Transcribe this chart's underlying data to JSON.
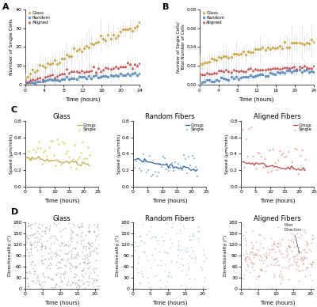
{
  "panel_A": {
    "xlabel": "Time (hours)",
    "ylabel": "Number of Single Cells",
    "ylim": [
      0,
      40
    ],
    "yticks": [
      0,
      10,
      20,
      30,
      40
    ],
    "xlim": [
      0,
      24
    ],
    "xticks": [
      0,
      4,
      8,
      12,
      16,
      20,
      24
    ],
    "legend": [
      "Glass",
      "Random",
      "Aligned"
    ],
    "colors": [
      "#C8A84B",
      "#6090B8",
      "#C04848"
    ],
    "markers": [
      "o",
      "s",
      "^"
    ]
  },
  "panel_B": {
    "xlabel": "Time (hours)",
    "ylabel": "Number of Single Cells/\nTotal Number of Cells",
    "ylim": [
      0.0,
      0.08
    ],
    "yticks": [
      0.0,
      0.02,
      0.04,
      0.06,
      0.08
    ],
    "xlim": [
      0,
      24
    ],
    "xticks": [
      0,
      4,
      8,
      12,
      16,
      20,
      24
    ],
    "legend": [
      "Glass",
      "Random",
      "Aligned"
    ],
    "colors": [
      "#C8A84B",
      "#6090B8",
      "#C04848"
    ],
    "markers": [
      "o",
      "s",
      "^"
    ]
  },
  "panel_C": {
    "titles": [
      "Glass",
      "Random Fibers",
      "Aligned Fibers"
    ],
    "xlabel": "Time (hours)",
    "ylabel": "Speed (μm/min)",
    "ylim": [
      0.0,
      0.8
    ],
    "yticks": [
      0.0,
      0.2,
      0.4,
      0.6,
      0.8
    ],
    "xlim": [
      0,
      25
    ],
    "xticks": [
      0,
      5,
      10,
      15,
      20,
      25
    ],
    "legend": [
      "Group",
      "Single"
    ],
    "group_colors": [
      "#C8A84B",
      "#3060A8",
      "#C04848"
    ],
    "single_colors": [
      "#D0D060",
      "#7AAAD0",
      "#E08080"
    ],
    "single_markers": [
      "o",
      "s",
      "^"
    ]
  },
  "panel_D": {
    "titles": [
      "Glass",
      "Random Fibers",
      "Aligned Fibers"
    ],
    "xlabel": "Time (hours)",
    "ylabel": "Directionality (°)",
    "ylim": [
      0,
      180
    ],
    "yticks": [
      0,
      30,
      60,
      90,
      120,
      150,
      180
    ],
    "xlim": [
      0,
      21
    ],
    "xticks": [
      0,
      5,
      10,
      15,
      20
    ],
    "colors": [
      "#666666",
      "#6090B8",
      "#C04848"
    ],
    "annotation": "Fiber\nDirection"
  },
  "background_color": "#FFFFFF"
}
